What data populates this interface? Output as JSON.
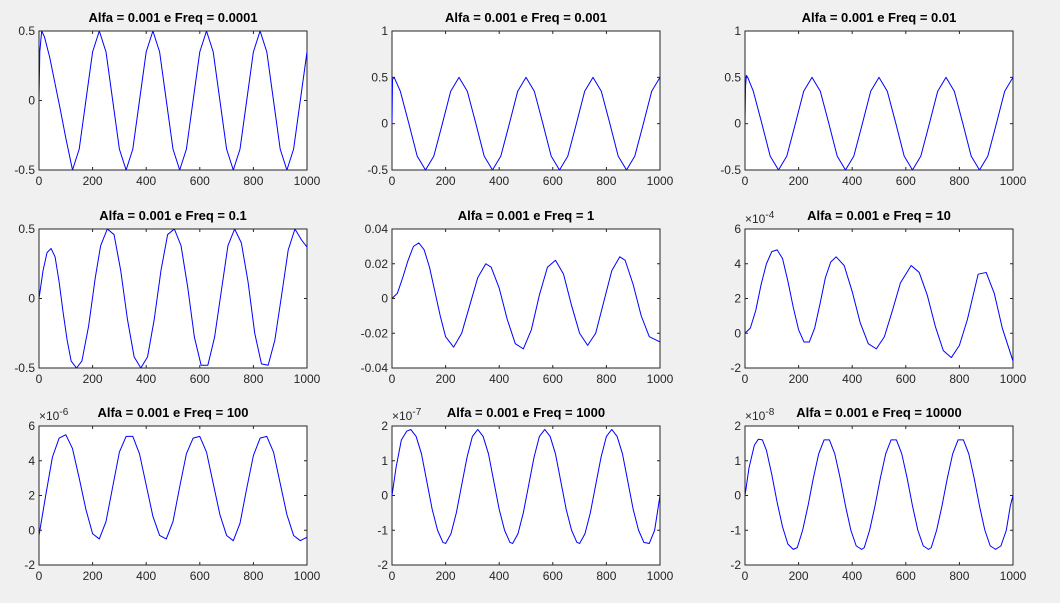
{
  "chart_data": [
    {
      "type": "line",
      "title": "Alfa = 0.001 e Freq = 0.0001",
      "xlim": [
        0,
        1000
      ],
      "ylim": [
        -0.5,
        0.5
      ],
      "xticks": [
        0,
        200,
        400,
        600,
        800,
        1000
      ],
      "yticks": [
        -0.5,
        0,
        0.5
      ],
      "ytick_labels": [
        "-0.5",
        "0",
        "0.5"
      ],
      "exponent_label": "",
      "series": [
        {
          "color": "#0000ff",
          "x": [
            0,
            3,
            10,
            20,
            40,
            60,
            80,
            100,
            125,
            150,
            175,
            200,
            225,
            250,
            275,
            300,
            325,
            350,
            375,
            400,
            425,
            450,
            475,
            500,
            525,
            550,
            575,
            600,
            625,
            650,
            675,
            700,
            725,
            750,
            775,
            800,
            825,
            850,
            875,
            900,
            925,
            950,
            975,
            1000
          ],
          "y": [
            0,
            0.35,
            0.5,
            0.46,
            0.31,
            0.12,
            -0.07,
            -0.27,
            -0.5,
            -0.35,
            0,
            0.35,
            0.5,
            0.35,
            0,
            -0.35,
            -0.5,
            -0.35,
            0,
            0.35,
            0.5,
            0.35,
            0,
            -0.35,
            -0.5,
            -0.35,
            0,
            0.35,
            0.5,
            0.35,
            0,
            -0.35,
            -0.5,
            -0.35,
            0,
            0.35,
            0.5,
            0.35,
            0,
            -0.35,
            -0.5,
            -0.35,
            0,
            0.35
          ]
        }
      ]
    },
    {
      "type": "line",
      "title": "Alfa = 0.001 e Freq = 0.001",
      "xlim": [
        0,
        1000
      ],
      "ylim": [
        -0.5,
        1
      ],
      "xticks": [
        0,
        200,
        400,
        600,
        800,
        1000
      ],
      "yticks": [
        -0.5,
        0,
        0.5,
        1
      ],
      "ytick_labels": [
        "-0.5",
        "0",
        "0.5",
        "1"
      ],
      "exponent_label": "",
      "series": [
        {
          "color": "#0000ff",
          "x": [
            0,
            2,
            8,
            31,
            63,
            94,
            125,
            156,
            188,
            219,
            250,
            281,
            313,
            344,
            375,
            406,
            438,
            469,
            500,
            531,
            563,
            594,
            625,
            656,
            688,
            719,
            750,
            781,
            813,
            844,
            875,
            906,
            938,
            969,
            1000
          ],
          "y": [
            0,
            0.48,
            0.5,
            0.35,
            0,
            -0.35,
            -0.5,
            -0.35,
            0,
            0.35,
            0.5,
            0.35,
            0,
            -0.35,
            -0.5,
            -0.35,
            0,
            0.35,
            0.5,
            0.35,
            0,
            -0.35,
            -0.5,
            -0.35,
            0,
            0.35,
            0.5,
            0.35,
            0,
            -0.35,
            -0.5,
            -0.35,
            0,
            0.35,
            0.5
          ]
        }
      ]
    },
    {
      "type": "line",
      "title": "Alfa = 0.001 e Freq = 0.01",
      "xlim": [
        0,
        1000
      ],
      "ylim": [
        -0.5,
        1
      ],
      "xticks": [
        0,
        200,
        400,
        600,
        800,
        1000
      ],
      "yticks": [
        -0.5,
        0,
        0.5,
        1
      ],
      "ytick_labels": [
        "-0.5",
        "0",
        "0.5",
        "1"
      ],
      "exponent_label": "",
      "series": [
        {
          "color": "#0000ff",
          "x": [
            0,
            2,
            5,
            10,
            31,
            63,
            94,
            125,
            156,
            188,
            219,
            250,
            281,
            313,
            344,
            375,
            406,
            438,
            469,
            500,
            531,
            563,
            594,
            625,
            656,
            688,
            719,
            750,
            781,
            813,
            844,
            875,
            906,
            938,
            969,
            1000
          ],
          "y": [
            0,
            0.4,
            0.52,
            0.5,
            0.35,
            0,
            -0.35,
            -0.5,
            -0.35,
            0,
            0.35,
            0.5,
            0.35,
            0,
            -0.35,
            -0.5,
            -0.35,
            0,
            0.35,
            0.5,
            0.35,
            0,
            -0.35,
            -0.5,
            -0.35,
            0,
            0.35,
            0.5,
            0.35,
            0,
            -0.35,
            -0.5,
            -0.35,
            0,
            0.35,
            0.5
          ]
        }
      ]
    },
    {
      "type": "line",
      "title": "Alfa = 0.001 e Freq = 0.1",
      "xlim": [
        0,
        1000
      ],
      "ylim": [
        -0.5,
        0.5
      ],
      "xticks": [
        0,
        200,
        400,
        600,
        800,
        1000
      ],
      "yticks": [
        -0.5,
        0,
        0.5
      ],
      "ytick_labels": [
        "-0.5",
        "0",
        "0.5"
      ],
      "exponent_label": "",
      "series": [
        {
          "color": "#0000ff",
          "x": [
            0,
            15,
            30,
            45,
            60,
            75,
            90,
            105,
            120,
            140,
            160,
            185,
            210,
            230,
            255,
            280,
            305,
            330,
            355,
            380,
            405,
            430,
            455,
            480,
            505,
            530,
            555,
            580,
            605,
            630,
            655,
            680,
            705,
            730,
            755,
            780,
            805,
            830,
            855,
            880,
            905,
            930,
            955,
            980,
            1000
          ],
          "y": [
            0,
            0.2,
            0.33,
            0.36,
            0.3,
            0.12,
            -0.1,
            -0.3,
            -0.45,
            -0.5,
            -0.45,
            -0.2,
            0.15,
            0.38,
            0.5,
            0.46,
            0.2,
            -0.15,
            -0.42,
            -0.5,
            -0.42,
            -0.15,
            0.2,
            0.46,
            0.5,
            0.38,
            0.08,
            -0.28,
            -0.48,
            -0.48,
            -0.28,
            0.05,
            0.38,
            0.5,
            0.4,
            0.12,
            -0.25,
            -0.47,
            -0.48,
            -0.3,
            0.02,
            0.35,
            0.5,
            0.42,
            0.37
          ]
        }
      ]
    },
    {
      "type": "line",
      "title": "Alfa = 0.001 e Freq = 1",
      "xlim": [
        0,
        1000
      ],
      "ylim": [
        -0.04,
        0.04
      ],
      "xticks": [
        0,
        200,
        400,
        600,
        800,
        1000
      ],
      "yticks": [
        -0.04,
        -0.02,
        0,
        0.02,
        0.04
      ],
      "ytick_labels": [
        "-0.04",
        "-0.02",
        "0",
        "0.02",
        "0.04"
      ],
      "exponent_label": "",
      "series": [
        {
          "color": "#0000ff",
          "x": [
            0,
            20,
            40,
            60,
            80,
            100,
            120,
            140,
            160,
            180,
            200,
            230,
            260,
            290,
            320,
            350,
            370,
            400,
            430,
            460,
            490,
            520,
            550,
            580,
            610,
            640,
            670,
            700,
            730,
            760,
            790,
            820,
            850,
            870,
            900,
            930,
            960,
            1000
          ],
          "y": [
            0,
            0.003,
            0.012,
            0.022,
            0.03,
            0.032,
            0.028,
            0.018,
            0.004,
            -0.01,
            -0.022,
            -0.028,
            -0.02,
            -0.004,
            0.012,
            0.02,
            0.018,
            0.006,
            -0.012,
            -0.026,
            -0.029,
            -0.018,
            0.002,
            0.018,
            0.022,
            0.014,
            -0.004,
            -0.02,
            -0.027,
            -0.02,
            -0.002,
            0.016,
            0.024,
            0.022,
            0.008,
            -0.01,
            -0.022,
            -0.025
          ]
        }
      ]
    },
    {
      "type": "line",
      "title": "Alfa = 0.001 e Freq = 10",
      "xlim": [
        0,
        1000
      ],
      "ylim": [
        -2,
        6
      ],
      "xticks": [
        0,
        200,
        400,
        600,
        800,
        1000
      ],
      "yticks": [
        -2,
        0,
        2,
        4,
        6
      ],
      "ytick_labels": [
        "-2",
        "0",
        "2",
        "4",
        "6"
      ],
      "exponent_label": "×10",
      "exponent_power": "-4",
      "series": [
        {
          "color": "#0000ff",
          "x": [
            0,
            20,
            40,
            60,
            80,
            100,
            120,
            140,
            160,
            180,
            200,
            220,
            240,
            260,
            280,
            300,
            320,
            340,
            370,
            400,
            430,
            460,
            490,
            520,
            550,
            580,
            620,
            650,
            680,
            710,
            740,
            770,
            800,
            830,
            870,
            900,
            930,
            960,
            1000
          ],
          "y": [
            0,
            0.3,
            1.3,
            2.8,
            4.0,
            4.7,
            4.8,
            4.3,
            3.0,
            1.5,
            0.2,
            -0.5,
            -0.5,
            0.3,
            1.7,
            3.2,
            4.1,
            4.4,
            3.9,
            2.4,
            0.6,
            -0.6,
            -0.9,
            -0.2,
            1.3,
            2.9,
            3.9,
            3.5,
            2.2,
            0.4,
            -1.0,
            -1.4,
            -0.7,
            0.8,
            3.4,
            3.5,
            2.3,
            0.3,
            -1.6
          ]
        }
      ]
    },
    {
      "type": "line",
      "title": "Alfa = 0.001 e Freq = 100",
      "xlim": [
        0,
        1000
      ],
      "ylim": [
        -2,
        6
      ],
      "xticks": [
        0,
        200,
        400,
        600,
        800,
        1000
      ],
      "yticks": [
        -2,
        0,
        2,
        4,
        6
      ],
      "ytick_labels": [
        "-2",
        "0",
        "2",
        "4",
        "6"
      ],
      "exponent_label": "×10",
      "exponent_power": "-6",
      "series": [
        {
          "color": "#0000ff",
          "x": [
            0,
            25,
            50,
            75,
            100,
            125,
            150,
            175,
            200,
            225,
            250,
            275,
            300,
            325,
            350,
            375,
            400,
            425,
            450,
            475,
            500,
            525,
            550,
            575,
            600,
            625,
            650,
            675,
            700,
            725,
            750,
            775,
            800,
            825,
            850,
            875,
            900,
            925,
            950,
            975,
            1000
          ],
          "y": [
            -0.3,
            2.0,
            4.2,
            5.3,
            5.5,
            4.7,
            3.0,
            1.2,
            -0.2,
            -0.5,
            0.5,
            2.5,
            4.5,
            5.4,
            5.4,
            4.4,
            2.6,
            0.8,
            -0.3,
            -0.5,
            0.5,
            2.5,
            4.4,
            5.3,
            5.4,
            4.5,
            2.7,
            0.9,
            -0.3,
            -0.6,
            0.4,
            2.4,
            4.3,
            5.3,
            5.4,
            4.5,
            2.7,
            0.9,
            -0.3,
            -0.6,
            -0.4
          ]
        }
      ]
    },
    {
      "type": "line",
      "title": "Alfa = 0.001 e Freq = 1000",
      "xlim": [
        0,
        1000
      ],
      "ylim": [
        -2,
        2
      ],
      "xticks": [
        0,
        200,
        400,
        600,
        800,
        1000
      ],
      "yticks": [
        -2,
        -1,
        0,
        1,
        2
      ],
      "ytick_labels": [
        "-2",
        "-1",
        "0",
        "1",
        "2"
      ],
      "exponent_label": "×10",
      "exponent_power": "-7",
      "series": [
        {
          "color": "#0000ff",
          "x": [
            0,
            15,
            35,
            55,
            70,
            90,
            110,
            130,
            150,
            170,
            190,
            200,
            220,
            240,
            260,
            280,
            300,
            320,
            340,
            360,
            380,
            400,
            420,
            440,
            450,
            470,
            490,
            510,
            530,
            550,
            570,
            590,
            610,
            630,
            650,
            670,
            690,
            700,
            720,
            740,
            760,
            780,
            800,
            820,
            840,
            860,
            880,
            900,
            920,
            940,
            960,
            980,
            1000
          ],
          "y": [
            0,
            0.8,
            1.6,
            1.85,
            1.9,
            1.7,
            1.2,
            0.4,
            -0.4,
            -1.0,
            -1.35,
            -1.38,
            -1.1,
            -0.5,
            0.3,
            1.1,
            1.7,
            1.9,
            1.7,
            1.2,
            0.4,
            -0.4,
            -1.0,
            -1.35,
            -1.38,
            -1.1,
            -0.5,
            0.3,
            1.1,
            1.7,
            1.9,
            1.7,
            1.2,
            0.4,
            -0.4,
            -1.0,
            -1.35,
            -1.38,
            -1.1,
            -0.5,
            0.3,
            1.1,
            1.7,
            1.9,
            1.7,
            1.2,
            0.4,
            -0.4,
            -1.0,
            -1.35,
            -1.38,
            -1.0,
            0
          ]
        }
      ]
    },
    {
      "type": "line",
      "title": "Alfa = 0.001 e Freq = 10000",
      "xlim": [
        0,
        1000
      ],
      "ylim": [
        -2,
        2
      ],
      "xticks": [
        0,
        200,
        400,
        600,
        800,
        1000
      ],
      "yticks": [
        -2,
        -1,
        0,
        1,
        2
      ],
      "ytick_labels": [
        "-2",
        "-1",
        "0",
        "1",
        "2"
      ],
      "exponent_label": "×10",
      "exponent_power": "-8",
      "series": [
        {
          "color": "#0000ff",
          "x": [
            0,
            15,
            35,
            50,
            65,
            80,
            100,
            120,
            140,
            160,
            180,
            195,
            215,
            235,
            255,
            275,
            295,
            315,
            335,
            355,
            375,
            395,
            415,
            435,
            445,
            465,
            485,
            505,
            525,
            545,
            565,
            585,
            605,
            625,
            645,
            665,
            685,
            695,
            715,
            735,
            755,
            775,
            795,
            815,
            835,
            855,
            875,
            895,
            915,
            935,
            955,
            975,
            990,
            1000
          ],
          "y": [
            0,
            0.8,
            1.45,
            1.62,
            1.6,
            1.3,
            0.6,
            -0.2,
            -0.9,
            -1.4,
            -1.55,
            -1.5,
            -1.0,
            -0.3,
            0.5,
            1.2,
            1.6,
            1.6,
            1.2,
            0.5,
            -0.3,
            -1.0,
            -1.45,
            -1.55,
            -1.5,
            -1.0,
            -0.3,
            0.5,
            1.2,
            1.6,
            1.6,
            1.2,
            0.5,
            -0.3,
            -1.0,
            -1.45,
            -1.55,
            -1.5,
            -1.0,
            -0.3,
            0.5,
            1.2,
            1.6,
            1.6,
            1.2,
            0.5,
            -0.3,
            -1.0,
            -1.45,
            -1.55,
            -1.45,
            -1.0,
            -0.3,
            0
          ]
        }
      ]
    }
  ]
}
